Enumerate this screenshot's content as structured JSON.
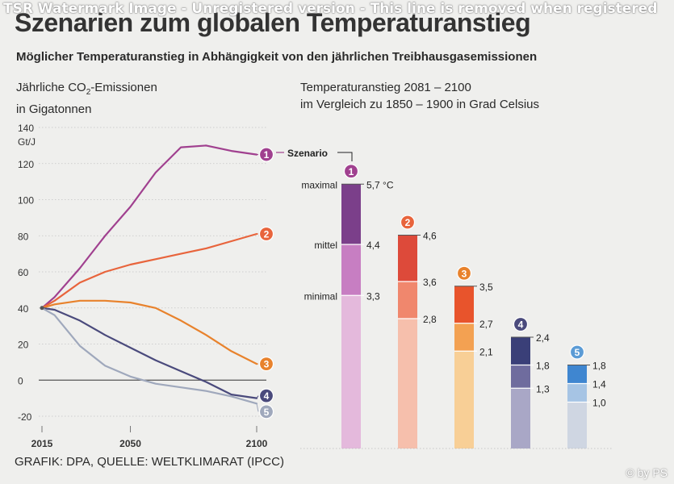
{
  "watermark": "TSR Watermark Image - Unregistered version - This line is removed when registered",
  "title": "Szenarien zum globalen Temperaturanstieg",
  "subtitle": "Möglicher Temperaturanstieg in Abhängigkeit von den jährlichen Treibhausgasemissionen",
  "left_label_line1": "Jährliche CO",
  "left_label_sub": "2",
  "left_label_line1_end": "-Emissionen",
  "left_label_line2": "in Gigatonnen",
  "right_label_line1": "Temperaturanstieg 2081 – 2100",
  "right_label_line2": "im Vergleich zu 1850 – 1900 in Grad Celsius",
  "source": "GRAFIK: DPA, QUELLE: WELTKLIMARAT (IPCC)",
  "copyright": "© by PS",
  "chart_data": [
    {
      "type": "line",
      "ylabel": "Gt/J",
      "ylim": [
        -20,
        140
      ],
      "yticks": [
        "140",
        "120",
        "100",
        "80",
        "60",
        "40",
        "20",
        "0",
        "-20"
      ],
      "ytick_values": [
        140,
        120,
        100,
        80,
        60,
        40,
        20,
        0,
        -20
      ],
      "xticks": [
        "2015",
        "2050",
        "2100"
      ],
      "xtick_values": [
        2015,
        2050,
        2100
      ],
      "grid": true,
      "series": [
        {
          "name": "1",
          "color": "#a0408f",
          "x": [
            2015,
            2020,
            2030,
            2040,
            2050,
            2060,
            2070,
            2080,
            2090,
            2100
          ],
          "y": [
            40,
            46,
            62,
            80,
            96,
            115,
            129,
            130,
            127,
            125
          ]
        },
        {
          "name": "2",
          "color": "#e8643c",
          "x": [
            2015,
            2020,
            2030,
            2040,
            2050,
            2060,
            2070,
            2080,
            2090,
            2100
          ],
          "y": [
            40,
            44,
            54,
            60,
            64,
            67,
            70,
            73,
            77,
            81
          ]
        },
        {
          "name": "3",
          "color": "#e8822c",
          "x": [
            2015,
            2020,
            2030,
            2040,
            2050,
            2060,
            2070,
            2080,
            2090,
            2100
          ],
          "y": [
            40,
            42,
            44,
            44,
            43,
            40,
            33,
            25,
            16,
            9
          ]
        },
        {
          "name": "4",
          "color": "#4a4a7c",
          "x": [
            2015,
            2020,
            2030,
            2040,
            2050,
            2060,
            2070,
            2080,
            2090,
            2100
          ],
          "y": [
            40,
            39,
            33,
            25,
            18,
            11,
            5,
            -1,
            -8,
            -10
          ]
        },
        {
          "name": "5",
          "color": "#9fa8bc",
          "x": [
            2015,
            2020,
            2030,
            2040,
            2050,
            2060,
            2070,
            2080,
            2090,
            2100
          ],
          "y": [
            40,
            36,
            19,
            8,
            2,
            -2,
            -4,
            -6,
            -9,
            -13
          ]
        }
      ]
    },
    {
      "type": "bar",
      "title": "Temperaturanstieg 2081 – 2100 im Vergleich zu 1850 – 1900 in Grad Celsius",
      "legend_title": "Szenario",
      "level_labels": [
        "maximal",
        "mittel",
        "minimal"
      ],
      "unit_label": "°C",
      "scenarios": [
        {
          "name": "1",
          "minimal": 3.3,
          "mittel": 4.4,
          "maximal": 5.7,
          "labels": [
            "5,7 °C",
            "4,4",
            "3,3"
          ],
          "colors": [
            "#7b3f8a",
            "#c77ec2",
            "#e4b9dc"
          ],
          "badge": "#a0408f"
        },
        {
          "name": "2",
          "minimal": 2.8,
          "mittel": 3.6,
          "maximal": 4.6,
          "labels": [
            "4,6",
            "3,6",
            "2,8"
          ],
          "colors": [
            "#dd4a3a",
            "#f0876d",
            "#f6bfac"
          ],
          "badge": "#e8643c"
        },
        {
          "name": "3",
          "minimal": 2.1,
          "mittel": 2.7,
          "maximal": 3.5,
          "labels": [
            "3,5",
            "2,7",
            "2,1"
          ],
          "colors": [
            "#e8542c",
            "#f3a152",
            "#f8cf96"
          ],
          "badge": "#e8822c"
        },
        {
          "name": "4",
          "minimal": 1.3,
          "mittel": 1.8,
          "maximal": 2.4,
          "labels": [
            "2,4",
            "1,8",
            "1,3"
          ],
          "colors": [
            "#3a3f78",
            "#6f6c9e",
            "#a9a7c6"
          ],
          "badge": "#4a4a7c"
        },
        {
          "name": "5",
          "minimal": 1.0,
          "mittel": 1.4,
          "maximal": 1.8,
          "labels": [
            "1,8",
            "1,4",
            "1,0"
          ],
          "colors": [
            "#3f86d0",
            "#a6c4e4",
            "#cfd6e2"
          ],
          "badge": "#5b9bd5"
        }
      ]
    }
  ]
}
